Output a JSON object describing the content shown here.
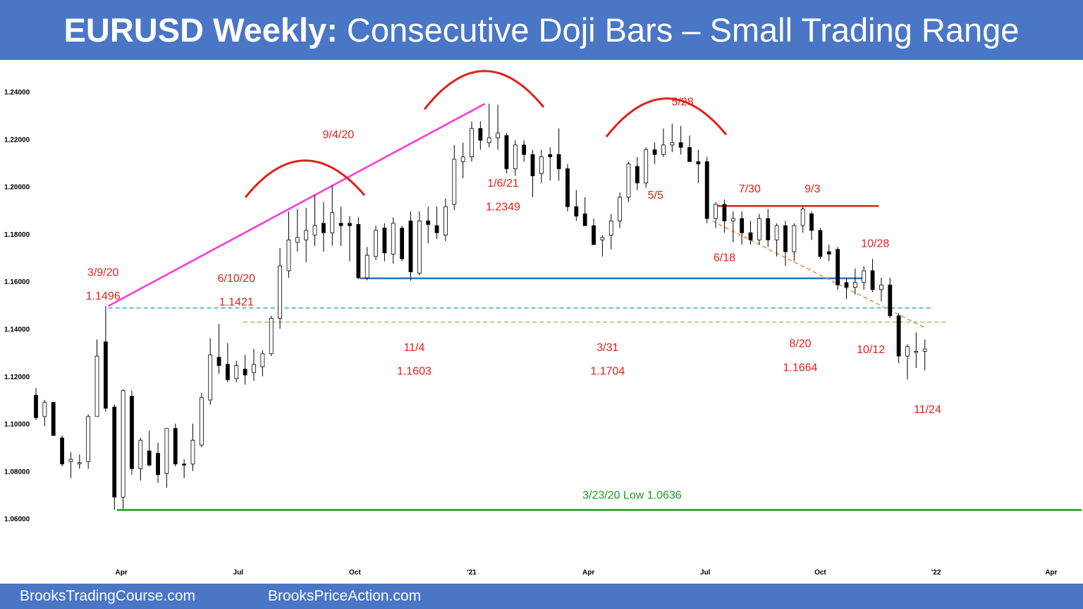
{
  "header": {
    "title_bold": "EURUSD Weekly:",
    "title_rest": " Consecutive Doji Bars – Small Trading Range"
  },
  "footer": {
    "left": "BrooksTradingCourse.com",
    "right": "BrooksPriceAction.com"
  },
  "colors": {
    "header_bg": "#4a76c6",
    "annotation": "#e0201b",
    "bull_body": "#ffffff",
    "bear_body": "#000000",
    "trendline": "#ff33dd",
    "support": "#2a72c0",
    "low_line": "#1a9a1a",
    "resistance": "#e0201b",
    "channel": "#f08a3a",
    "level_1496": "#33aacc",
    "level_1421": "#a8c060"
  },
  "chart_data": {
    "type": "candlestick",
    "title": "EURUSD Weekly: Consecutive Doji Bars – Small Trading Range",
    "ylim": [
      1.055,
      1.245
    ],
    "y_ticks": [
      "1.06000",
      "1.08000",
      "1.10000",
      "1.12000",
      "1.14000",
      "1.16000",
      "1.18000",
      "1.20000",
      "1.22000",
      "1.24000"
    ],
    "x_ticks": [
      {
        "label": "Apr",
        "week": 9.8
      },
      {
        "label": "Jul",
        "week": 23.2
      },
      {
        "label": "Oct",
        "week": 36.6
      },
      {
        "label": "'21",
        "week": 50.0
      },
      {
        "label": "Apr",
        "week": 63.4
      },
      {
        "label": "Jul",
        "week": 76.8
      },
      {
        "label": "Oct",
        "week": 90.0
      },
      {
        "label": "'22",
        "week": 103.3
      },
      {
        "label": "Apr",
        "week": 116.5
      }
    ],
    "candles": [
      {
        "o": 1.112,
        "h": 1.115,
        "l": 1.1015,
        "c": 1.1025
      },
      {
        "o": 1.103,
        "h": 1.11,
        "l": 1.099,
        "c": 1.109
      },
      {
        "o": 1.109,
        "h": 1.109,
        "l": 1.095,
        "c": 1.095
      },
      {
        "o": 1.094,
        "h": 1.095,
        "l": 1.082,
        "c": 1.083
      },
      {
        "o": 1.084,
        "h": 1.088,
        "l": 1.077,
        "c": 1.085
      },
      {
        "o": 1.0835,
        "h": 1.087,
        "l": 1.081,
        "c": 1.0835
      },
      {
        "o": 1.084,
        "h": 1.104,
        "l": 1.081,
        "c": 1.103
      },
      {
        "o": 1.103,
        "h": 1.1355,
        "l": 1.103,
        "c": 1.1285
      },
      {
        "o": 1.1345,
        "h": 1.1496,
        "l": 1.105,
        "c": 1.1065
      },
      {
        "o": 1.107,
        "h": 1.108,
        "l": 1.0636,
        "c": 1.069
      },
      {
        "o": 1.069,
        "h": 1.1145,
        "l": 1.064,
        "c": 1.114
      },
      {
        "o": 1.1115,
        "h": 1.114,
        "l": 1.0785,
        "c": 1.081
      },
      {
        "o": 1.081,
        "h": 1.094,
        "l": 1.076,
        "c": 1.093
      },
      {
        "o": 1.0885,
        "h": 1.097,
        "l": 1.082,
        "c": 1.0825
      },
      {
        "o": 1.0875,
        "h": 1.092,
        "l": 1.075,
        "c": 1.0785
      },
      {
        "o": 1.079,
        "h": 1.098,
        "l": 1.073,
        "c": 1.098
      },
      {
        "o": 1.098,
        "h": 1.1,
        "l": 1.082,
        "c": 1.083
      },
      {
        "o": 1.083,
        "h": 1.085,
        "l": 1.077,
        "c": 1.0825
      },
      {
        "o": 1.083,
        "h": 1.1,
        "l": 1.08,
        "c": 1.093
      },
      {
        "o": 1.091,
        "h": 1.113,
        "l": 1.09,
        "c": 1.111
      },
      {
        "o": 1.11,
        "h": 1.136,
        "l": 1.108,
        "c": 1.129
      },
      {
        "o": 1.128,
        "h": 1.142,
        "l": 1.121,
        "c": 1.1245
      },
      {
        "o": 1.125,
        "h": 1.134,
        "l": 1.1175,
        "c": 1.1185
      },
      {
        "o": 1.119,
        "h": 1.1265,
        "l": 1.1175,
        "c": 1.1245
      },
      {
        "o": 1.123,
        "h": 1.129,
        "l": 1.1165,
        "c": 1.1205
      },
      {
        "o": 1.1215,
        "h": 1.1315,
        "l": 1.118,
        "c": 1.125
      },
      {
        "o": 1.124,
        "h": 1.131,
        "l": 1.12,
        "c": 1.1295
      },
      {
        "o": 1.1295,
        "h": 1.1455,
        "l": 1.1285,
        "c": 1.1445
      },
      {
        "o": 1.1445,
        "h": 1.174,
        "l": 1.14,
        "c": 1.1665
      },
      {
        "o": 1.1645,
        "h": 1.1895,
        "l": 1.1615,
        "c": 1.1775
      },
      {
        "o": 1.1765,
        "h": 1.1905,
        "l": 1.1725,
        "c": 1.1785
      },
      {
        "o": 1.1775,
        "h": 1.191,
        "l": 1.168,
        "c": 1.1815
      },
      {
        "o": 1.1795,
        "h": 1.1965,
        "l": 1.175,
        "c": 1.1835
      },
      {
        "o": 1.1845,
        "h": 1.1935,
        "l": 1.1725,
        "c": 1.1805
      },
      {
        "o": 1.1805,
        "h": 1.2005,
        "l": 1.175,
        "c": 1.189
      },
      {
        "o": 1.1845,
        "h": 1.1915,
        "l": 1.175,
        "c": 1.1835
      },
      {
        "o": 1.1845,
        "h": 1.1875,
        "l": 1.1685,
        "c": 1.1835
      },
      {
        "o": 1.184,
        "h": 1.187,
        "l": 1.161,
        "c": 1.1615
      },
      {
        "o": 1.1615,
        "h": 1.1745,
        "l": 1.1605,
        "c": 1.171
      },
      {
        "o": 1.1705,
        "h": 1.1835,
        "l": 1.169,
        "c": 1.1815
      },
      {
        "o": 1.1825,
        "h": 1.1845,
        "l": 1.1685,
        "c": 1.172
      },
      {
        "o": 1.1715,
        "h": 1.187,
        "l": 1.1675,
        "c": 1.1845
      },
      {
        "o": 1.1825,
        "h": 1.1835,
        "l": 1.1685,
        "c": 1.1695
      },
      {
        "o": 1.1855,
        "h": 1.1895,
        "l": 1.1603,
        "c": 1.164
      },
      {
        "o": 1.1635,
        "h": 1.1895,
        "l": 1.1625,
        "c": 1.1855
      },
      {
        "o": 1.1855,
        "h": 1.1915,
        "l": 1.176,
        "c": 1.184
      },
      {
        "o": 1.1835,
        "h": 1.1915,
        "l": 1.178,
        "c": 1.1805
      },
      {
        "o": 1.1795,
        "h": 1.195,
        "l": 1.177,
        "c": 1.1915
      },
      {
        "o": 1.1925,
        "h": 1.2175,
        "l": 1.19,
        "c": 1.2115
      },
      {
        "o": 1.2105,
        "h": 1.2185,
        "l": 1.2035,
        "c": 1.2125
      },
      {
        "o": 1.2125,
        "h": 1.2275,
        "l": 1.2105,
        "c": 1.2245
      },
      {
        "o": 1.2245,
        "h": 1.2275,
        "l": 1.2155,
        "c": 1.2195
      },
      {
        "o": 1.2185,
        "h": 1.2349,
        "l": 1.2165,
        "c": 1.2205
      },
      {
        "o": 1.2205,
        "h": 1.2345,
        "l": 1.2155,
        "c": 1.2225
      },
      {
        "o": 1.2215,
        "h": 1.2225,
        "l": 1.2055,
        "c": 1.2075
      },
      {
        "o": 1.2075,
        "h": 1.2195,
        "l": 1.2045,
        "c": 1.2175
      },
      {
        "o": 1.2175,
        "h": 1.2195,
        "l": 1.2105,
        "c": 1.2135
      },
      {
        "o": 1.2135,
        "h": 1.2155,
        "l": 1.1955,
        "c": 1.2045
      },
      {
        "o": 1.2055,
        "h": 1.2155,
        "l": 1.2015,
        "c": 1.2125
      },
      {
        "o": 1.2135,
        "h": 1.2165,
        "l": 1.2025,
        "c": 1.2125
      },
      {
        "o": 1.2135,
        "h": 1.2245,
        "l": 1.2025,
        "c": 1.2075
      },
      {
        "o": 1.2075,
        "h": 1.2095,
        "l": 1.1895,
        "c": 1.1915
      },
      {
        "o": 1.1915,
        "h": 1.1985,
        "l": 1.1855,
        "c": 1.1875
      },
      {
        "o": 1.1885,
        "h": 1.1955,
        "l": 1.1845,
        "c": 1.1835
      },
      {
        "o": 1.1835,
        "h": 1.1865,
        "l": 1.1765,
        "c": 1.1755
      },
      {
        "o": 1.1775,
        "h": 1.1795,
        "l": 1.1705,
        "c": 1.1785
      },
      {
        "o": 1.1795,
        "h": 1.1885,
        "l": 1.1735,
        "c": 1.1855
      },
      {
        "o": 1.1855,
        "h": 1.1975,
        "l": 1.1825,
        "c": 1.1955
      },
      {
        "o": 1.1955,
        "h": 1.2105,
        "l": 1.1935,
        "c": 1.2095
      },
      {
        "o": 1.2085,
        "h": 1.2125,
        "l": 1.1985,
        "c": 1.2015
      },
      {
        "o": 1.2015,
        "h": 1.2165,
        "l": 1.1995,
        "c": 1.2155
      },
      {
        "o": 1.2155,
        "h": 1.2185,
        "l": 1.2095,
        "c": 1.2135
      },
      {
        "o": 1.2135,
        "h": 1.2245,
        "l": 1.2125,
        "c": 1.2175
      },
      {
        "o": 1.2175,
        "h": 1.2265,
        "l": 1.2145,
        "c": 1.2185
      },
      {
        "o": 1.2185,
        "h": 1.2255,
        "l": 1.2135,
        "c": 1.2165
      },
      {
        "o": 1.2165,
        "h": 1.2215,
        "l": 1.2105,
        "c": 1.2105
      },
      {
        "o": 1.2105,
        "h": 1.2155,
        "l": 1.2015,
        "c": 1.2095
      },
      {
        "o": 1.2105,
        "h": 1.2125,
        "l": 1.1845,
        "c": 1.1865
      },
      {
        "o": 1.1865,
        "h": 1.1935,
        "l": 1.1825,
        "c": 1.1925
      },
      {
        "o": 1.1925,
        "h": 1.1945,
        "l": 1.1805,
        "c": 1.1855
      },
      {
        "o": 1.1855,
        "h": 1.1895,
        "l": 1.1765,
        "c": 1.1865
      },
      {
        "o": 1.1865,
        "h": 1.1895,
        "l": 1.1755,
        "c": 1.1805
      },
      {
        "o": 1.1805,
        "h": 1.1855,
        "l": 1.1755,
        "c": 1.1775
      },
      {
        "o": 1.1775,
        "h": 1.1885,
        "l": 1.1755,
        "c": 1.1865
      },
      {
        "o": 1.1865,
        "h": 1.1905,
        "l": 1.1745,
        "c": 1.1775
      },
      {
        "o": 1.1775,
        "h": 1.1845,
        "l": 1.1705,
        "c": 1.1835
      },
      {
        "o": 1.1835,
        "h": 1.1855,
        "l": 1.1664,
        "c": 1.1725
      },
      {
        "o": 1.1725,
        "h": 1.1845,
        "l": 1.1685,
        "c": 1.1835
      },
      {
        "o": 1.1835,
        "h": 1.1915,
        "l": 1.1805,
        "c": 1.1905
      },
      {
        "o": 1.1885,
        "h": 1.1895,
        "l": 1.1775,
        "c": 1.1815
      },
      {
        "o": 1.1815,
        "h": 1.1825,
        "l": 1.1695,
        "c": 1.1705
      },
      {
        "o": 1.1725,
        "h": 1.1755,
        "l": 1.1685,
        "c": 1.1715
      },
      {
        "o": 1.1735,
        "h": 1.1745,
        "l": 1.1565,
        "c": 1.1585
      },
      {
        "o": 1.1595,
        "h": 1.1615,
        "l": 1.1525,
        "c": 1.1575
      },
      {
        "o": 1.1575,
        "h": 1.1655,
        "l": 1.1545,
        "c": 1.1595
      },
      {
        "o": 1.1595,
        "h": 1.1665,
        "l": 1.1565,
        "c": 1.1645
      },
      {
        "o": 1.1645,
        "h": 1.1695,
        "l": 1.1555,
        "c": 1.1565
      },
      {
        "o": 1.1565,
        "h": 1.1615,
        "l": 1.1515,
        "c": 1.1585
      },
      {
        "o": 1.1585,
        "h": 1.1615,
        "l": 1.1445,
        "c": 1.1455
      },
      {
        "o": 1.1455,
        "h": 1.1465,
        "l": 1.1255,
        "c": 1.1285
      },
      {
        "o": 1.1285,
        "h": 1.1335,
        "l": 1.1186,
        "c": 1.1325
      },
      {
        "o": 1.1305,
        "h": 1.1385,
        "l": 1.1235,
        "c": 1.1305
      },
      {
        "o": 1.1305,
        "h": 1.1355,
        "l": 1.1225,
        "c": 1.1315
      }
    ],
    "lines": [
      {
        "name": "trendline",
        "kind": "solid",
        "from": {
          "week": 8.3,
          "price": 1.1496
        },
        "to": {
          "week": 51.5,
          "price": 1.2349
        }
      },
      {
        "name": "support-1603",
        "kind": "solid",
        "from": {
          "week": 37.2,
          "price": 1.1613
        },
        "to": {
          "week": 95.0,
          "price": 1.1613
        }
      },
      {
        "name": "resistance",
        "kind": "solid",
        "from": {
          "week": 78.2,
          "price": 1.1918
        },
        "to": {
          "week": 96.7,
          "price": 1.1918
        }
      },
      {
        "name": "low-1636",
        "kind": "solid",
        "from": {
          "week": 9.3,
          "price": 1.0636
        },
        "to": {
          "week": 120.0,
          "price": 1.0636
        }
      },
      {
        "name": "level-1496",
        "kind": "dashed",
        "from": {
          "week": 8.3,
          "price": 1.1488
        },
        "to": {
          "week": 103.0,
          "price": 1.1488
        }
      },
      {
        "name": "level-1421",
        "kind": "dashed",
        "from": {
          "week": 23.8,
          "price": 1.1428
        },
        "to": {
          "week": 104.7,
          "price": 1.1428
        }
      },
      {
        "name": "channel",
        "kind": "dashed",
        "from": {
          "week": 77.6,
          "price": 1.1855
        },
        "to": {
          "week": 102.0,
          "price": 1.1405
        }
      }
    ],
    "annotations": [
      {
        "text": "9/4/20",
        "week": 34.7,
        "price": 1.2204
      },
      {
        "text": "5/28",
        "week": 74.2,
        "price": 1.2343
      },
      {
        "text": "1/6/21",
        "week": 53.6,
        "price": 1.1999
      },
      {
        "text": "1.2349",
        "week": 53.6,
        "price": 1.1899
      },
      {
        "text": "5/5",
        "week": 71.1,
        "price": 1.1949
      },
      {
        "text": "7/30",
        "week": 81.9,
        "price": 1.1975
      },
      {
        "text": "9/3",
        "week": 89.1,
        "price": 1.1975
      },
      {
        "text": "10/28",
        "week": 96.3,
        "price": 1.1745
      },
      {
        "text": "6/18",
        "week": 79.0,
        "price": 1.1685
      },
      {
        "text": "3/9/20",
        "week": 7.7,
        "price": 1.1623
      },
      {
        "text": "1.1496",
        "week": 7.7,
        "price": 1.1523
      },
      {
        "text": "6/10/20",
        "week": 23.0,
        "price": 1.1598
      },
      {
        "text": "1.1421",
        "week": 23.0,
        "price": 1.1498
      },
      {
        "text": "11/4",
        "week": 43.4,
        "price": 1.1307
      },
      {
        "text": "1.1603",
        "week": 43.4,
        "price": 1.1207
      },
      {
        "text": "3/31",
        "week": 65.6,
        "price": 1.1307
      },
      {
        "text": "1.1704",
        "week": 65.6,
        "price": 1.1207
      },
      {
        "text": "8/20",
        "week": 87.7,
        "price": 1.1322
      },
      {
        "text": "1.1664",
        "week": 87.7,
        "price": 1.1222
      },
      {
        "text": "10/12",
        "week": 95.8,
        "price": 1.1297
      },
      {
        "text": "11/24",
        "week": 102.3,
        "price": 1.1045
      }
    ],
    "low_label": {
      "text": "3/23/20 Low 1.0636",
      "week": 68.4,
      "price": 1.0684
    }
  }
}
